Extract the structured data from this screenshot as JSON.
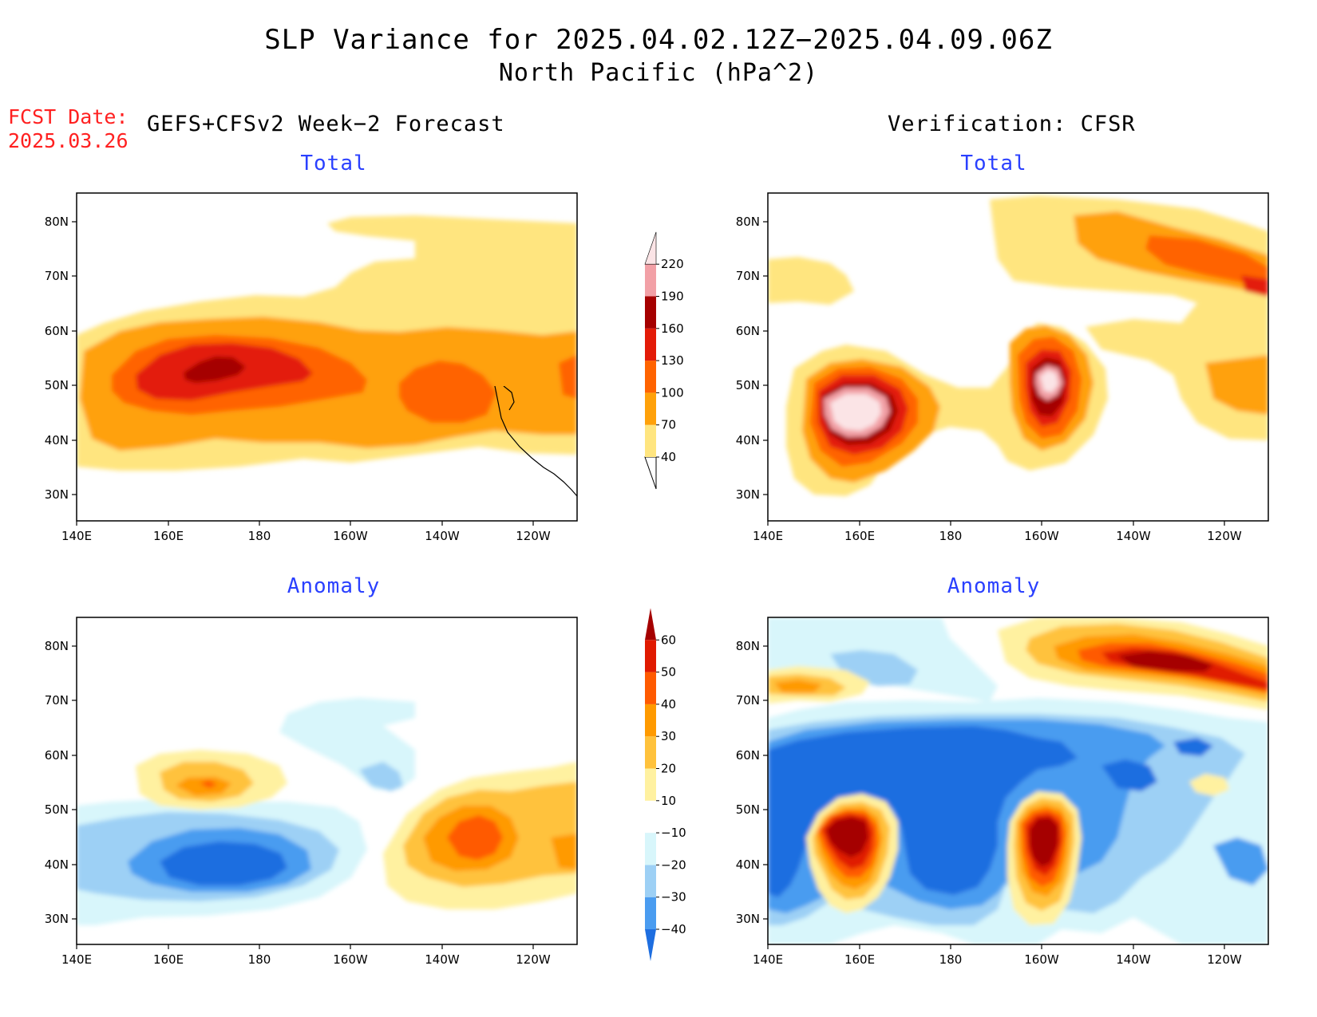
{
  "title": {
    "line1": "SLP Variance for 2025.04.02.12Z−2025.04.09.06Z",
    "line2": "North Pacific (hPa^2)"
  },
  "fcst_date": {
    "label": "FCST Date:",
    "value": "2025.03.26"
  },
  "headers": {
    "left": "GEFS+CFSv2 Week−2 Forecast",
    "right": "Verification: CFSR"
  },
  "panels": [
    {
      "title": "Total"
    },
    {
      "title": "Total"
    },
    {
      "title": "Anomaly"
    },
    {
      "title": "Anomaly"
    }
  ],
  "axes": {
    "lat_labels": [
      "80N",
      "70N",
      "60N",
      "50N",
      "40N",
      "30N"
    ],
    "lon_labels": [
      "140E",
      "160E",
      "180",
      "160W",
      "140W",
      "120W"
    ]
  },
  "colorbar_total": {
    "labels": [
      "40",
      "70",
      "100",
      "130",
      "160",
      "190",
      "220"
    ],
    "colors": [
      "#ffe57f",
      "#ffa10a",
      "#ff6300",
      "#e31b08",
      "#a50000",
      "#f2a0a6",
      "#fbe4e6"
    ]
  },
  "colorbar_anomaly": {
    "labels": [
      "−40",
      "−30",
      "−20",
      "−10",
      "10",
      "20",
      "30",
      "40",
      "50",
      "60"
    ],
    "colors": [
      "#1e6ee0",
      "#4a9cf0",
      "#9dd0f5",
      "#d8f6fb",
      "#ffffff",
      "#fff1a0",
      "#ffc23c",
      "#ff9a00",
      "#ff5a00",
      "#e01a00",
      "#a50000"
    ]
  }
}
